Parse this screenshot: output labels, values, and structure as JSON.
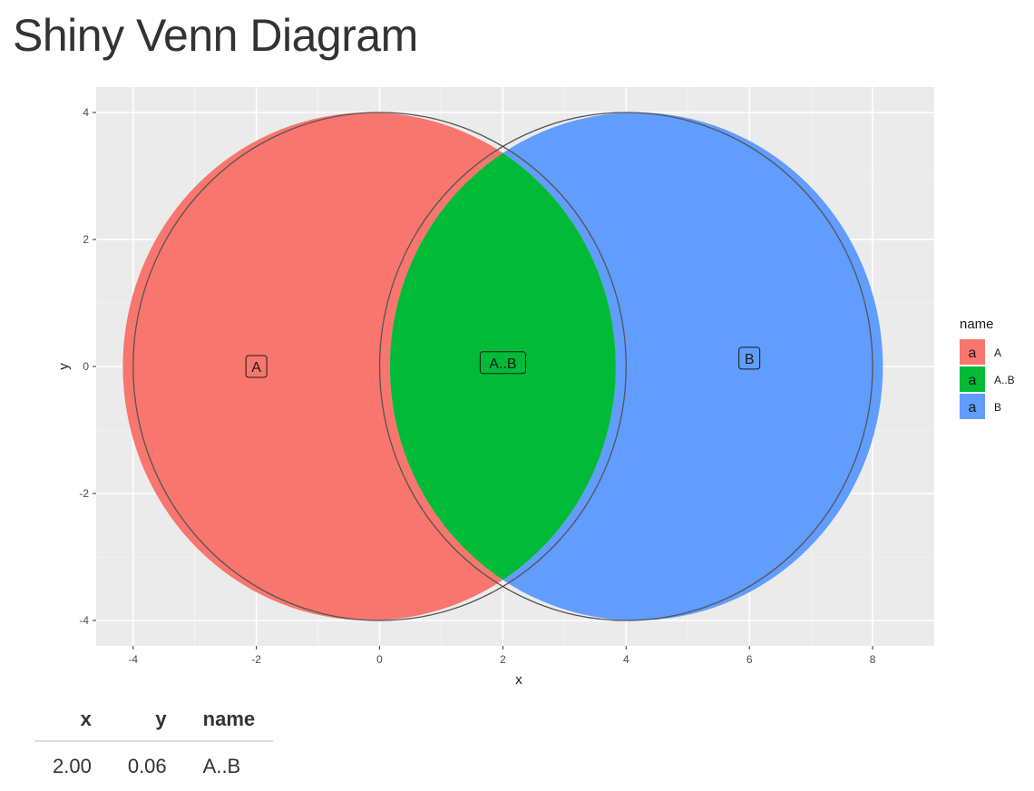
{
  "app": {
    "title": "Shiny Venn Diagram"
  },
  "chart_data": {
    "type": "venn",
    "title": "",
    "xlabel": "x",
    "ylabel": "y",
    "xlim": [
      -4.6,
      9.0
    ],
    "ylim": [
      -4.4,
      4.4
    ],
    "x_ticks": [
      -4,
      -2,
      0,
      2,
      4,
      6,
      8
    ],
    "y_ticks": [
      -4,
      -2,
      0,
      2,
      4
    ],
    "grid": true,
    "background": "#ebebeb",
    "sets": [
      {
        "name": "A",
        "center": [
          0,
          0
        ],
        "radius": 4,
        "color": "#F8766D"
      },
      {
        "name": "B",
        "center": [
          4,
          0
        ],
        "radius": 4,
        "color": "#619CFF"
      }
    ],
    "regions": [
      {
        "name": "A",
        "color": "#F8766D",
        "label_x": -2.0,
        "label_y": 0.0
      },
      {
        "name": "A..B",
        "color": "#00BA38",
        "label_x": 2.0,
        "label_y": 0.06
      },
      {
        "name": "B",
        "color": "#619CFF",
        "label_x": 6.0,
        "label_y": 0.13
      }
    ],
    "legend": {
      "title": "name",
      "position": "right",
      "key_glyph": "a",
      "entries": [
        {
          "label": "A",
          "color": "#F8766D"
        },
        {
          "label": "A..B",
          "color": "#00BA38"
        },
        {
          "label": "B",
          "color": "#619CFF"
        }
      ]
    }
  },
  "table": {
    "columns": [
      "x",
      "y",
      "name"
    ],
    "rows": [
      [
        "2.00",
        "0.06",
        "A..B"
      ]
    ]
  }
}
